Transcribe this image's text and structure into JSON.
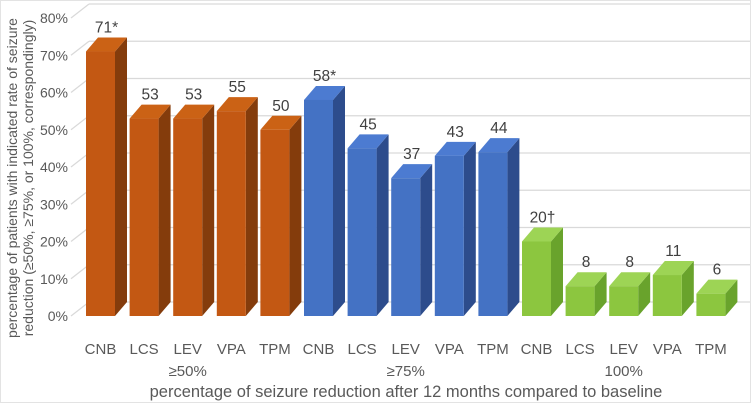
{
  "figure": {
    "background": "#FFFFFF",
    "border_color": "#E3E3E3"
  },
  "chart_data": {
    "type": "bar",
    "style": "3d-column",
    "title": "",
    "xlabel": "percentage of seizure reduction after 12 months compared to baseline",
    "ylabel_lines": [
      "percentage of patients with indicated rate of seizure",
      "reduction (≥50%, ≥75%, or 100%, correspondingly)"
    ],
    "ylim": [
      0,
      80
    ],
    "ytick_percent_values": [
      0,
      10,
      20,
      30,
      40,
      50,
      60,
      70,
      80
    ],
    "ytick_labels": [
      "0%",
      "10%",
      "20%",
      "30%",
      "40%",
      "50%",
      "60%",
      "70%",
      "80%"
    ],
    "grid": true,
    "legend": "none",
    "categories": [
      "CNB",
      "LCS",
      "LEV",
      "VPA",
      "TPM"
    ],
    "groups": [
      {
        "label": "≥50%",
        "values": [
          71,
          53,
          53,
          55,
          50
        ],
        "value_labels": [
          "71*",
          "53",
          "53",
          "55",
          "50"
        ],
        "colors": {
          "front": "#C35813",
          "side": "#843C0C",
          "top": "#CB6215"
        }
      },
      {
        "label": "≥75%",
        "values": [
          58,
          45,
          37,
          43,
          44
        ],
        "value_labels": [
          "58*",
          "45",
          "37",
          "43",
          "44"
        ],
        "colors": {
          "front": "#4472C4",
          "side": "#2D4C8C",
          "top": "#4C7BD1"
        }
      },
      {
        "label": "100%",
        "values": [
          20,
          8,
          8,
          11,
          6
        ],
        "value_labels": [
          "20†",
          "8",
          "8",
          "11",
          "6"
        ],
        "colors": {
          "front": "#8CC63F",
          "side": "#69A32C",
          "top": "#9DD455"
        }
      }
    ],
    "gridline_color": "#D9D9D9",
    "text_colors": {
      "axis": "#595959",
      "value_labels": "#404040"
    }
  }
}
